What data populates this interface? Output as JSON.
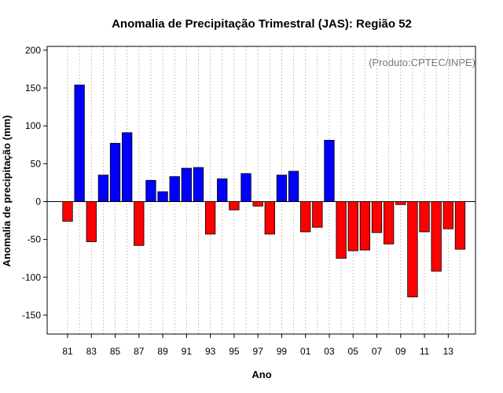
{
  "chart_data": {
    "type": "bar",
    "title": "Anomalia de Precipitação Trimestral (JAS): Região 52",
    "xlabel": "Ano",
    "ylabel": "Anomalia de precipitação (mm)",
    "credit": "(Produto:CPTEC/INPE)",
    "ylim": [
      -175,
      205
    ],
    "y_ticks": [
      -150,
      -100,
      -50,
      0,
      50,
      100,
      150,
      200
    ],
    "categories": [
      "81",
      "82",
      "83",
      "84",
      "85",
      "86",
      "87",
      "88",
      "89",
      "90",
      "91",
      "92",
      "93",
      "94",
      "95",
      "96",
      "97",
      "98",
      "99",
      "00",
      "01",
      "02",
      "03",
      "04",
      "05",
      "06",
      "07",
      "08",
      "09",
      "10",
      "11",
      "12",
      "13",
      "14"
    ],
    "x_tick_labels": [
      "81",
      "83",
      "85",
      "87",
      "89",
      "91",
      "93",
      "95",
      "97",
      "99",
      "01",
      "03",
      "05",
      "07",
      "09",
      "11",
      "13"
    ],
    "values": [
      -26,
      154,
      -53,
      35,
      77,
      91,
      -58,
      28,
      13,
      33,
      44,
      45,
      -43,
      30,
      -11,
      37,
      -6,
      -43,
      35,
      40,
      -40,
      -34,
      81,
      -75,
      -65,
      -64,
      -41,
      -56,
      -4,
      -126,
      -40,
      -92,
      -36,
      -63
    ],
    "grid": "vertical dotted",
    "colors": {
      "positive": "#0000ff",
      "negative": "#ff0000",
      "grid": "#bbbbbb",
      "credit": "#777777"
    }
  }
}
